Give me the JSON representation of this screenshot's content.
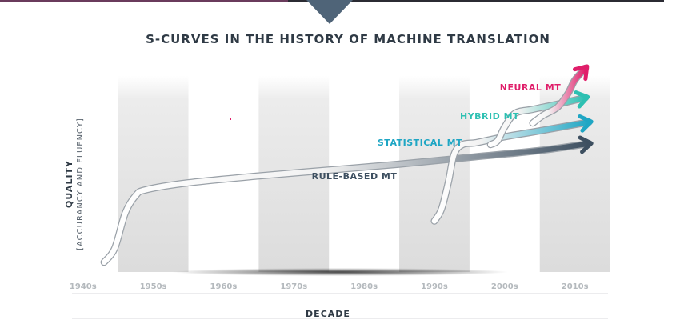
{
  "chart_data": {
    "type": "line",
    "title": "S-CURVES IN THE HISTORY OF MACHINE TRANSLATION",
    "xlabel": "DECADE",
    "ylabel": "QUALITY",
    "ylabel_sub": "[ACCURANCY AND FLUENCY]",
    "categories": [
      "1940s",
      "1950s",
      "1960s",
      "1970s",
      "1980s",
      "1990s",
      "2000s",
      "2010s"
    ],
    "category_values": [
      1940,
      1950,
      1960,
      1970,
      1980,
      1990,
      2000,
      2010
    ],
    "xlim": [
      1939,
      2013
    ],
    "ylim": [
      0,
      100
    ],
    "grid": "alternating vertical bands",
    "series": [
      {
        "name": "RULE-BASED MT",
        "color": "#3d4f60",
        "points": [
          [
            1943,
            5
          ],
          [
            1944.5,
            12
          ],
          [
            1946,
            30
          ],
          [
            1947.5,
            39
          ],
          [
            1949,
            42
          ],
          [
            1955,
            45.5
          ],
          [
            1965,
            49
          ],
          [
            1975,
            52
          ],
          [
            1985,
            55
          ],
          [
            1995,
            58.5
          ],
          [
            2005,
            62
          ],
          [
            2012,
            65.5
          ]
        ]
      },
      {
        "name": "STATISTICAL MT",
        "color": "#1fa6c4",
        "points": [
          [
            1990,
            26
          ],
          [
            1991,
            32
          ],
          [
            1992,
            46
          ],
          [
            1992.8,
            60
          ],
          [
            1994,
            65
          ],
          [
            1996,
            66
          ],
          [
            2000,
            69
          ],
          [
            2005,
            72
          ],
          [
            2012,
            76.5
          ]
        ]
      },
      {
        "name": "HYBRID MT",
        "color": "#2dc0b2",
        "points": [
          [
            1998,
            65
          ],
          [
            1999,
            67
          ],
          [
            2000,
            74
          ],
          [
            2001.5,
            81
          ],
          [
            2004,
            83
          ],
          [
            2008,
            86
          ],
          [
            2011.5,
            89
          ]
        ]
      },
      {
        "name": "NEURAL MT",
        "color": "#e01e6a",
        "points": [
          [
            2004,
            76
          ],
          [
            2005.5,
            80
          ],
          [
            2007.5,
            84
          ],
          [
            2009,
            91
          ],
          [
            2010,
            98
          ],
          [
            2011.5,
            104
          ]
        ]
      }
    ]
  }
}
